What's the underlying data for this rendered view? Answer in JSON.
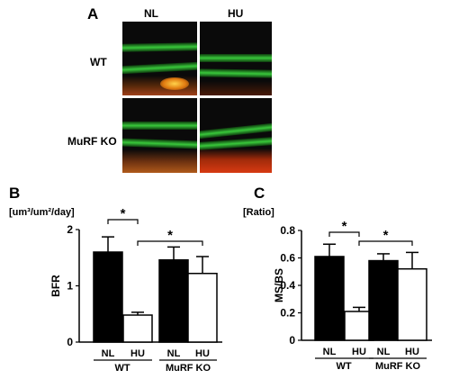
{
  "panelA": {
    "letter": "A",
    "columns": [
      "NL",
      "HU"
    ],
    "rows": [
      "WT",
      "MuRF KO"
    ]
  },
  "chart_data": [
    {
      "panel": "B",
      "type": "bar",
      "unit": "[um³/um²/day]",
      "ylabel": "BFR",
      "yticks": [
        "0",
        "1",
        "2"
      ],
      "ylim": [
        0,
        2
      ],
      "categories": [
        "NL",
        "HU",
        "NL",
        "HU"
      ],
      "groups": [
        "WT",
        "MuRF KO"
      ],
      "values": [
        1.6,
        0.48,
        1.46,
        1.22
      ],
      "errors": [
        0.27,
        0.05,
        0.23,
        0.3
      ],
      "fills": [
        "#000000",
        "#ffffff",
        "#000000",
        "#ffffff"
      ],
      "significance": [
        "*",
        "*"
      ]
    },
    {
      "panel": "C",
      "type": "bar",
      "unit": "[Ratio]",
      "ylabel": "MS/BS",
      "yticks": [
        "0",
        "0.2",
        "0.4",
        "0.6",
        "0.8"
      ],
      "ylim": [
        0,
        0.8
      ],
      "categories": [
        "NL",
        "HU",
        "NL",
        "HU"
      ],
      "groups": [
        "WT",
        "MuRF KO"
      ],
      "values": [
        0.61,
        0.21,
        0.58,
        0.52
      ],
      "errors": [
        0.09,
        0.03,
        0.05,
        0.12
      ],
      "fills": [
        "#000000",
        "#ffffff",
        "#000000",
        "#ffffff"
      ],
      "significance": [
        "*",
        "*"
      ]
    }
  ]
}
